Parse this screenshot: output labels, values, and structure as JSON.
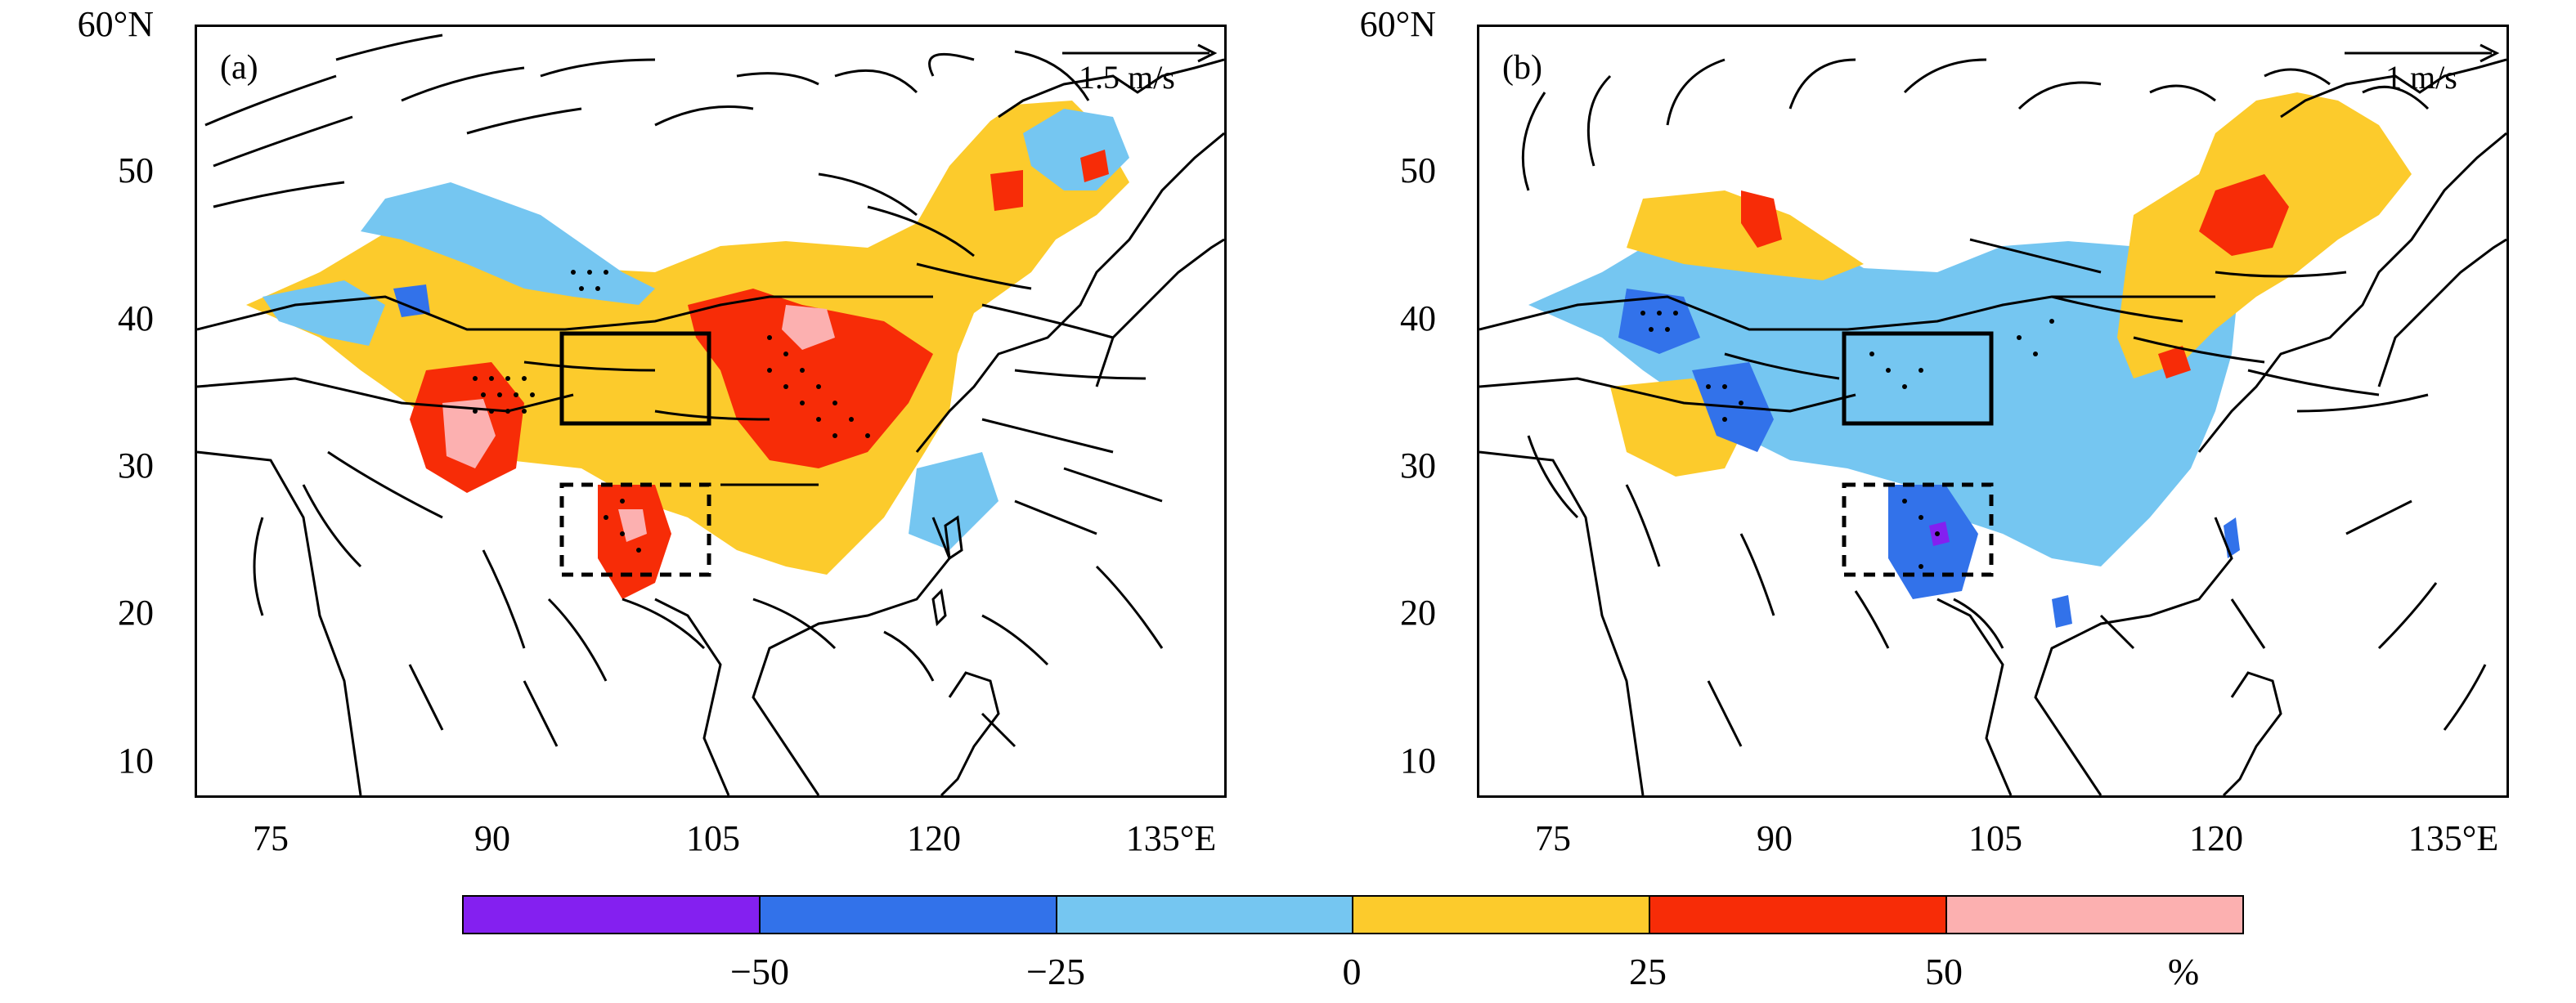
{
  "panels": [
    {
      "label": "(a)",
      "ref_vector": "1.5 m/s",
      "lat_ticks": [
        "60°N",
        "50",
        "40",
        "30",
        "20",
        "10"
      ],
      "lon_ticks": [
        "75",
        "90",
        "105",
        "120",
        "135°E"
      ]
    },
    {
      "label": "(b)",
      "ref_vector": "1 m/s",
      "lat_ticks": [
        "60°N",
        "50",
        "40",
        "30",
        "20",
        "10"
      ],
      "lon_ticks": [
        "75",
        "90",
        "105",
        "120",
        "135°E"
      ]
    }
  ],
  "colorbar": {
    "colors": [
      "#8420f0",
      "#3272ea",
      "#75c6f1",
      "#fccb2c",
      "#f72c07",
      "#fcb0b0"
    ],
    "tick_labels": [
      "−50",
      "−25",
      "0",
      "25",
      "50"
    ],
    "unit": "%"
  }
}
